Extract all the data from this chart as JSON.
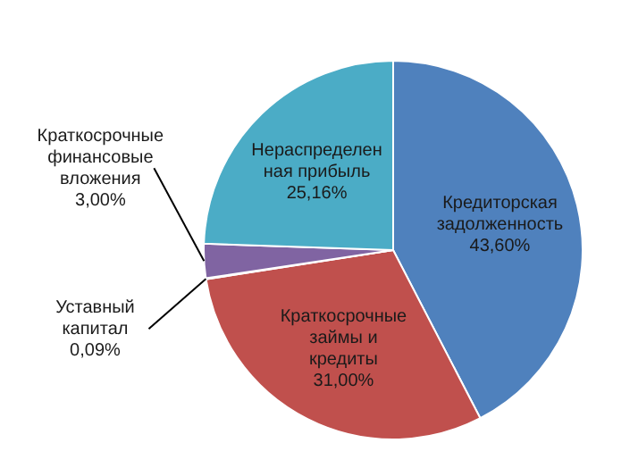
{
  "chart_data": {
    "type": "pie",
    "categories": [
      "Кредиторская задолженность",
      "Краткосрочные займы и кредиты",
      "Уставный капитал",
      "Краткосрочные финансовые вложения",
      "Нераспределенная прибыль"
    ],
    "values": [
      43.6,
      31.0,
      0.09,
      3.0,
      25.16
    ],
    "value_labels": [
      "43,60%",
      "31,00%",
      "0,09%",
      "3,00%",
      "25,16%"
    ],
    "colors": [
      "#4f81bd",
      "#c0504d",
      "#9bbb59",
      "#8064a2",
      "#4bacc6"
    ]
  }
}
